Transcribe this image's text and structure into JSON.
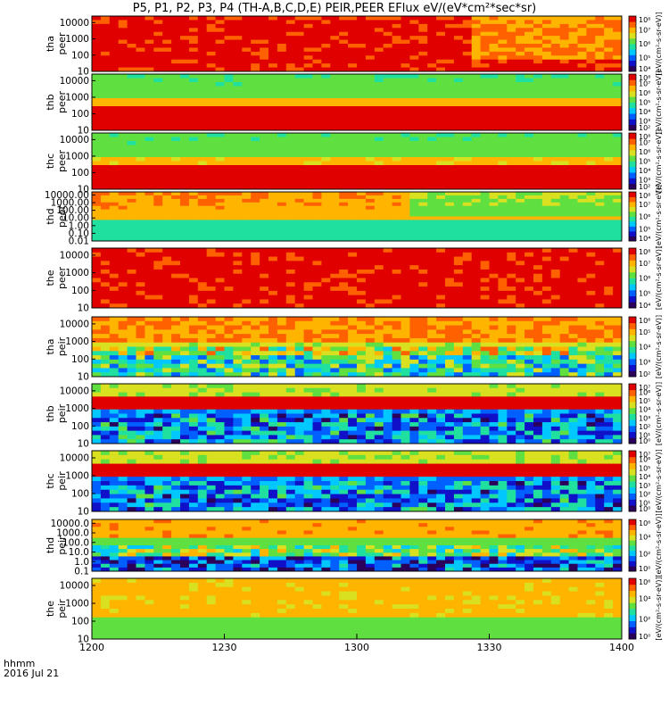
{
  "title": "P5, P1, P2, P3, P4 (TH-A,B,C,D,E) PEIR,PEER EFlux eV/(eV*cm²*sec*sr)",
  "time_axis": {
    "label_line1": "hhmm",
    "label_line2": "2016 Jul 21",
    "ticks": [
      "1200",
      "1230",
      "1300",
      "1330",
      "1400"
    ],
    "tick_minutes": [
      0,
      30,
      60,
      90,
      120
    ],
    "range_minutes": [
      0,
      120
    ]
  },
  "colorbar": {
    "label": "[eV/(cm²-s-sr-eV)]",
    "colors": [
      "#2a005a",
      "#1010c8",
      "#0060ff",
      "#00c8ff",
      "#20e0a0",
      "#60e040",
      "#d8e020",
      "#ffb400",
      "#ff6000",
      "#e00000"
    ]
  },
  "chart_data": [
    {
      "type": "heatmap",
      "name": "tha-peer",
      "ylabel": "tha\npeer",
      "yticks": [
        "10",
        "100",
        "1000",
        "10000"
      ],
      "ylog": [
        1,
        4.4
      ],
      "cbar_ticks": [
        "10⁴",
        "10⁵",
        "10⁶",
        "10⁷",
        "10⁸"
      ],
      "cbar_exp": [
        4,
        8
      ],
      "description": "mostly red/orange (high flux) across energies"
    },
    {
      "type": "heatmap",
      "name": "thb-peer",
      "ylabel": "thb\npeer",
      "yticks": [
        "10",
        "100",
        "1000",
        "10000"
      ],
      "ylog": [
        1,
        4.4
      ],
      "cbar_ticks": [
        "10²",
        "10³",
        "10⁴",
        "10⁵",
        "10⁶",
        "10⁷",
        "10⁸"
      ],
      "cbar_exp": [
        2,
        8
      ],
      "description": "red band near 10-300 eV, green/cyan above"
    },
    {
      "type": "heatmap",
      "name": "thc-peer",
      "ylabel": "thc\npeer",
      "yticks": [
        "10",
        "100",
        "1000",
        "10000"
      ],
      "ylog": [
        1,
        4.4
      ],
      "cbar_ticks": [
        "10²",
        "10³",
        "10⁴",
        "10⁵",
        "10⁶",
        "10⁷",
        "10⁸"
      ],
      "cbar_exp": [
        2,
        8
      ],
      "description": "red band near 10-300 eV"
    },
    {
      "type": "heatmap",
      "name": "thd-peer",
      "ylabel": "thd\npeer",
      "yticks": [
        "0.01",
        "0.10",
        "1.00",
        "10.00",
        "100.00",
        "1000.00",
        "10000.00"
      ],
      "ylog": [
        -2,
        4.4
      ],
      "cbar_ticks": [
        "10⁴",
        "10⁵",
        "10⁶",
        "10⁷",
        "10⁸"
      ],
      "cbar_exp": [
        4,
        8
      ],
      "description": "orange above 10 eV, cyan stripes below 0.1 eV"
    },
    {
      "type": "heatmap",
      "name": "the-peer",
      "ylabel": "the\npeer",
      "yticks": [
        "10",
        "100",
        "1000",
        "10000"
      ],
      "ylog": [
        1,
        4.4
      ],
      "cbar_ticks": [
        "10⁴",
        "10⁵",
        "10⁶",
        "10⁷",
        "10⁸"
      ],
      "cbar_exp": [
        4,
        8
      ],
      "description": "red dominant across energies"
    },
    {
      "type": "heatmap",
      "name": "tha-peir",
      "ylabel": "tha\npeir",
      "yticks": [
        "10",
        "100",
        "1000",
        "10000"
      ],
      "ylog": [
        1,
        4.4
      ],
      "cbar_ticks": [
        "10²",
        "10³",
        "10⁴",
        "10⁵",
        "10⁶"
      ],
      "cbar_exp": [
        2,
        6
      ],
      "description": "orange at high energy, green/noise at low energy"
    },
    {
      "type": "heatmap",
      "name": "thb-peir",
      "ylabel": "thb\npeir",
      "yticks": [
        "10",
        "100",
        "1000",
        "10000"
      ],
      "ylog": [
        1,
        4.4
      ],
      "cbar_ticks": [
        "10⁰",
        "10¹",
        "10²",
        "10³",
        "10⁴",
        "10⁵",
        "10⁶",
        "10⁷"
      ],
      "cbar_exp": [
        0,
        7
      ],
      "description": "narrow red band near 1000 eV, blue/cyan noise below"
    },
    {
      "type": "heatmap",
      "name": "thc-peir",
      "ylabel": "thc\npeir",
      "yticks": [
        "10",
        "100",
        "1000",
        "10000"
      ],
      "ylog": [
        1,
        4.4
      ],
      "cbar_ticks": [
        "10⁰",
        "10¹",
        "10²",
        "10³",
        "10⁴",
        "10⁵",
        "10⁶",
        "10⁷"
      ],
      "cbar_exp": [
        0,
        7
      ],
      "description": "narrow red band near 1000 eV, blue/cyan noise below"
    },
    {
      "type": "heatmap",
      "name": "thd-peir",
      "ylabel": "thd\npeir",
      "yticks": [
        "0.1",
        "1.0",
        "10.0",
        "100.0",
        "1000.0",
        "10000.0"
      ],
      "ylog": [
        -1,
        4.4
      ],
      "cbar_ticks": [
        "10⁰",
        "10²",
        "10⁴",
        "10⁶"
      ],
      "cbar_exp": [
        0,
        6
      ],
      "description": "orange at top, green middle, black/cyan stripes below 1 eV"
    },
    {
      "type": "heatmap",
      "name": "the-peir",
      "ylabel": "the\npeir",
      "yticks": [
        "10",
        "100",
        "1000",
        "10000"
      ],
      "ylog": [
        1,
        4.4
      ],
      "cbar_ticks": [
        "10⁰",
        "10²",
        "10⁴",
        "10⁶"
      ],
      "cbar_exp": [
        0,
        6
      ],
      "description": "orange/yellow at high energy, green/cyan at low energy"
    }
  ]
}
